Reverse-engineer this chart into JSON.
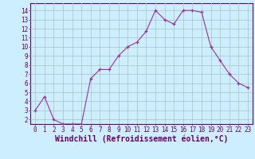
{
  "x": [
    0,
    1,
    2,
    3,
    4,
    5,
    6,
    7,
    8,
    9,
    10,
    11,
    12,
    13,
    14,
    15,
    16,
    17,
    18,
    19,
    20,
    21,
    22,
    23
  ],
  "y": [
    3,
    4.5,
    2,
    1.5,
    1.5,
    1.5,
    6.5,
    7.5,
    7.5,
    9,
    10,
    10.5,
    11.7,
    14,
    13,
    12.5,
    14,
    14,
    13.8,
    10,
    8.5,
    7,
    6,
    5.5
  ],
  "line_color": "#993399",
  "marker": "+",
  "bg_color": "#cceeff",
  "grid_color": "#aacccc",
  "xlabel": "Windchill (Refroidissement éolien,°C)",
  "xlim": [
    -0.5,
    23.5
  ],
  "ylim": [
    1.5,
    14.8
  ],
  "yticks": [
    2,
    3,
    4,
    5,
    6,
    7,
    8,
    9,
    10,
    11,
    12,
    13,
    14
  ],
  "xticks": [
    0,
    1,
    2,
    3,
    4,
    5,
    6,
    7,
    8,
    9,
    10,
    11,
    12,
    13,
    14,
    15,
    16,
    17,
    18,
    19,
    20,
    21,
    22,
    23
  ],
  "tick_fontsize": 5.5,
  "xlabel_fontsize": 7.0,
  "axes_color": "#660066",
  "spine_color": "#660066"
}
